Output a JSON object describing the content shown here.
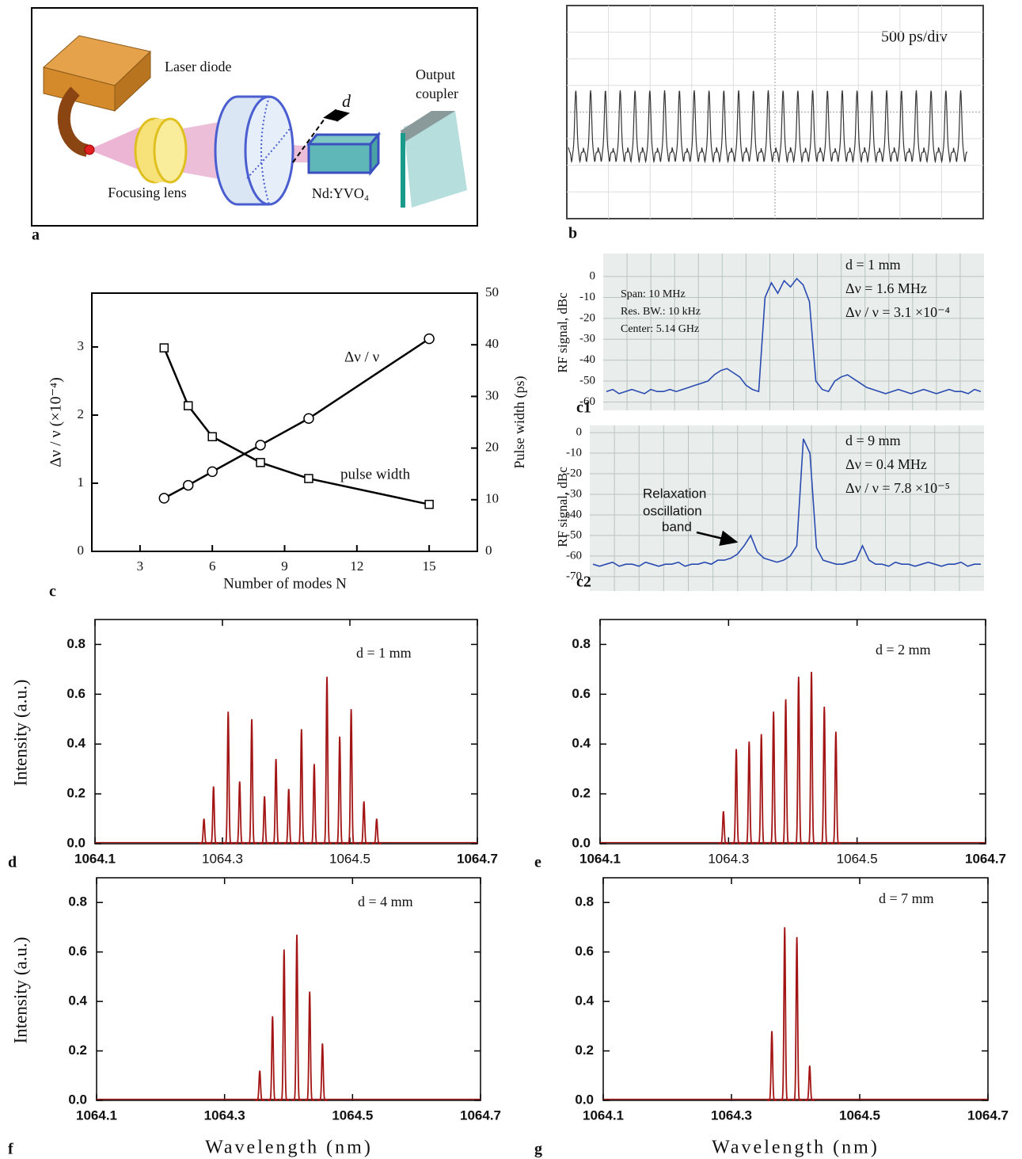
{
  "diagram": {
    "panel_label": "a",
    "laser_diode": "Laser diode",
    "output_coupler": [
      "Output",
      "coupler"
    ],
    "d": "d",
    "focusing_lens": "Focusing lens",
    "crystal": "Nd:YVO₄"
  },
  "oscilloscope": {
    "panel_label": "b",
    "scale": "500 ps/div"
  },
  "chart_data": [
    {
      "type": "line",
      "panel_label": "c",
      "xlabel": "Number of modes N",
      "ylabel": "Δν / ν  (×10⁻⁴)",
      "y2label": "Pulse width (ps)",
      "xlim": [
        1,
        17
      ],
      "xticks": [
        3,
        6,
        9,
        12,
        15
      ],
      "ylim": [
        0,
        3.79
      ],
      "yticks": [
        0,
        1,
        2,
        3
      ],
      "y2lim": [
        0,
        50
      ],
      "y2ticks": [
        0,
        10,
        20,
        30,
        40,
        50
      ],
      "series": [
        {
          "name": "Δν / ν",
          "marker": "circle",
          "color": "#000000",
          "x": [
            4,
            5,
            6,
            8,
            10,
            15
          ],
          "values": [
            0.78,
            0.97,
            1.17,
            1.56,
            1.95,
            3.12
          ]
        },
        {
          "name": "pulse width",
          "marker": "square",
          "axis": "y2",
          "color": "#000000",
          "x": [
            4,
            5,
            6,
            8,
            10,
            15
          ],
          "values": [
            39.4,
            28.2,
            22.2,
            17.2,
            14.1,
            9.1
          ]
        }
      ]
    },
    {
      "type": "line",
      "panel_label": "c1",
      "ylabel": "RF signal, dBc",
      "ylim": [
        -64,
        11
      ],
      "yticks": [
        0,
        -10,
        -20,
        -30,
        -40,
        -50,
        -60
      ],
      "grid": true,
      "color": "#2a4bb0",
      "annotations": [
        "d = 1 mm",
        "Δν = 1.6 MHz",
        "Δν / ν = 3.1 ×10⁻⁴",
        "Span: 10 MHz",
        "Res. BW.: 10 kHz",
        "Center: 5.14 GHz"
      ],
      "values": [
        -55,
        -54,
        -56,
        -55,
        -54,
        -55,
        -56,
        -54,
        -55,
        -55,
        -54,
        -55,
        -54,
        -53,
        -52,
        -51,
        -50,
        -47,
        -45,
        -44,
        -46,
        -48,
        -52,
        -54,
        -55,
        -10,
        -3,
        -8,
        -2,
        -5,
        -1,
        -4,
        -12,
        -50,
        -54,
        -55,
        -50,
        -48,
        -47,
        -49,
        -51,
        -53,
        -54,
        -55,
        -56,
        -55,
        -54,
        -55,
        -56,
        -55,
        -54,
        -55,
        -56,
        -55,
        -54,
        -55,
        -55,
        -56,
        -54,
        -55
      ]
    },
    {
      "type": "line",
      "panel_label": "c2",
      "ylabel": "RF signal, dBc",
      "ylim": [
        -77,
        3.5
      ],
      "yticks": [
        0,
        -10,
        -20,
        -30,
        -40,
        -50,
        -60,
        -70
      ],
      "grid": true,
      "color": "#2a4bb0",
      "annotations": [
        "d = 9 mm",
        "Δν = 0.4 MHz",
        "Δν / ν = 7.8 ×10⁻⁵",
        "Relaxation",
        "oscillation",
        "band"
      ],
      "values": [
        -64,
        -65,
        -64,
        -63,
        -65,
        -64,
        -64,
        -65,
        -63,
        -64,
        -65,
        -64,
        -64,
        -63,
        -65,
        -64,
        -64,
        -63,
        -64,
        -62,
        -62,
        -61,
        -59,
        -55,
        -50,
        -58,
        -61,
        -62,
        -63,
        -62,
        -60,
        -55,
        -3,
        -10,
        -56,
        -62,
        -63,
        -64,
        -64,
        -63,
        -62,
        -55,
        -62,
        -64,
        -64,
        -65,
        -63,
        -64,
        -64,
        -65,
        -64,
        -63,
        -64,
        -65,
        -64,
        -64,
        -63,
        -65,
        -64,
        -64
      ]
    },
    {
      "type": "spectrum",
      "panel_label": "d",
      "ylabel": "Intensity (a.u.)",
      "annotation": "d = 1 mm",
      "color": "#a31515",
      "xlim": [
        1064.1,
        1064.7
      ],
      "xticks": [
        1064.1,
        1064.3,
        1064.5,
        1064.7
      ],
      "ylim": [
        0,
        0.9
      ],
      "yticks": [
        {
          "value": 0,
          "label": "0.0"
        },
        0.2,
        0.4,
        0.6,
        0.8
      ],
      "x": [
        1064.271,
        1064.286,
        1064.309,
        1064.327,
        1064.346,
        1064.366,
        1064.384,
        1064.404,
        1064.424,
        1064.444,
        1064.464,
        1064.484,
        1064.502,
        1064.522,
        1064.542
      ],
      "values": [
        0.1,
        0.23,
        0.53,
        0.25,
        0.5,
        0.19,
        0.34,
        0.22,
        0.46,
        0.32,
        0.67,
        0.43,
        0.54,
        0.17,
        0.1
      ]
    },
    {
      "type": "spectrum",
      "panel_label": "e",
      "annotation": "d = 2 mm",
      "color": "#a31515",
      "xlim": [
        1064.1,
        1064.7
      ],
      "xticks": [
        1064.1,
        1064.3,
        1064.5,
        1064.7
      ],
      "ylim": [
        0,
        0.9
      ],
      "yticks": [
        {
          "value": 0,
          "label": "0.0"
        },
        0.2,
        0.4,
        0.6,
        0.8
      ],
      "x": [
        1064.292,
        1064.312,
        1064.332,
        1064.351,
        1064.37,
        1064.389,
        1064.409,
        1064.429,
        1064.449,
        1064.467
      ],
      "values": [
        0.13,
        0.38,
        0.41,
        0.44,
        0.53,
        0.58,
        0.67,
        0.69,
        0.55,
        0.45
      ]
    },
    {
      "type": "spectrum",
      "panel_label": "f",
      "ylabel": "Intensity (a.u.)",
      "xlabel": "Wavelength (nm)",
      "annotation": "d = 4 mm",
      "color": "#a31515",
      "xlim": [
        1064.1,
        1064.7
      ],
      "xticks": [
        1064.1,
        1064.3,
        1064.5,
        1064.7
      ],
      "ylim": [
        0,
        0.9
      ],
      "yticks": [
        {
          "value": 0,
          "label": "0.0"
        },
        0.2,
        0.4,
        0.6,
        0.8
      ],
      "x": [
        1064.355,
        1064.375,
        1064.393,
        1064.413,
        1064.433,
        1064.453
      ],
      "values": [
        0.12,
        0.34,
        0.61,
        0.67,
        0.44,
        0.23
      ]
    },
    {
      "type": "spectrum",
      "panel_label": "g",
      "xlabel": "Wavelength (nm)",
      "annotation": "d = 7 mm",
      "color": "#a31515",
      "xlim": [
        1064.1,
        1064.7
      ],
      "xticks": [
        1064.1,
        1064.3,
        1064.5,
        1064.7
      ],
      "ylim": [
        0,
        0.9
      ],
      "yticks": [
        {
          "value": 0,
          "label": "0.0"
        },
        0.2,
        0.4,
        0.6,
        0.8
      ],
      "x": [
        1064.363,
        1064.383,
        1064.402,
        1064.422
      ],
      "values": [
        0.28,
        0.7,
        0.66,
        0.14
      ]
    }
  ]
}
